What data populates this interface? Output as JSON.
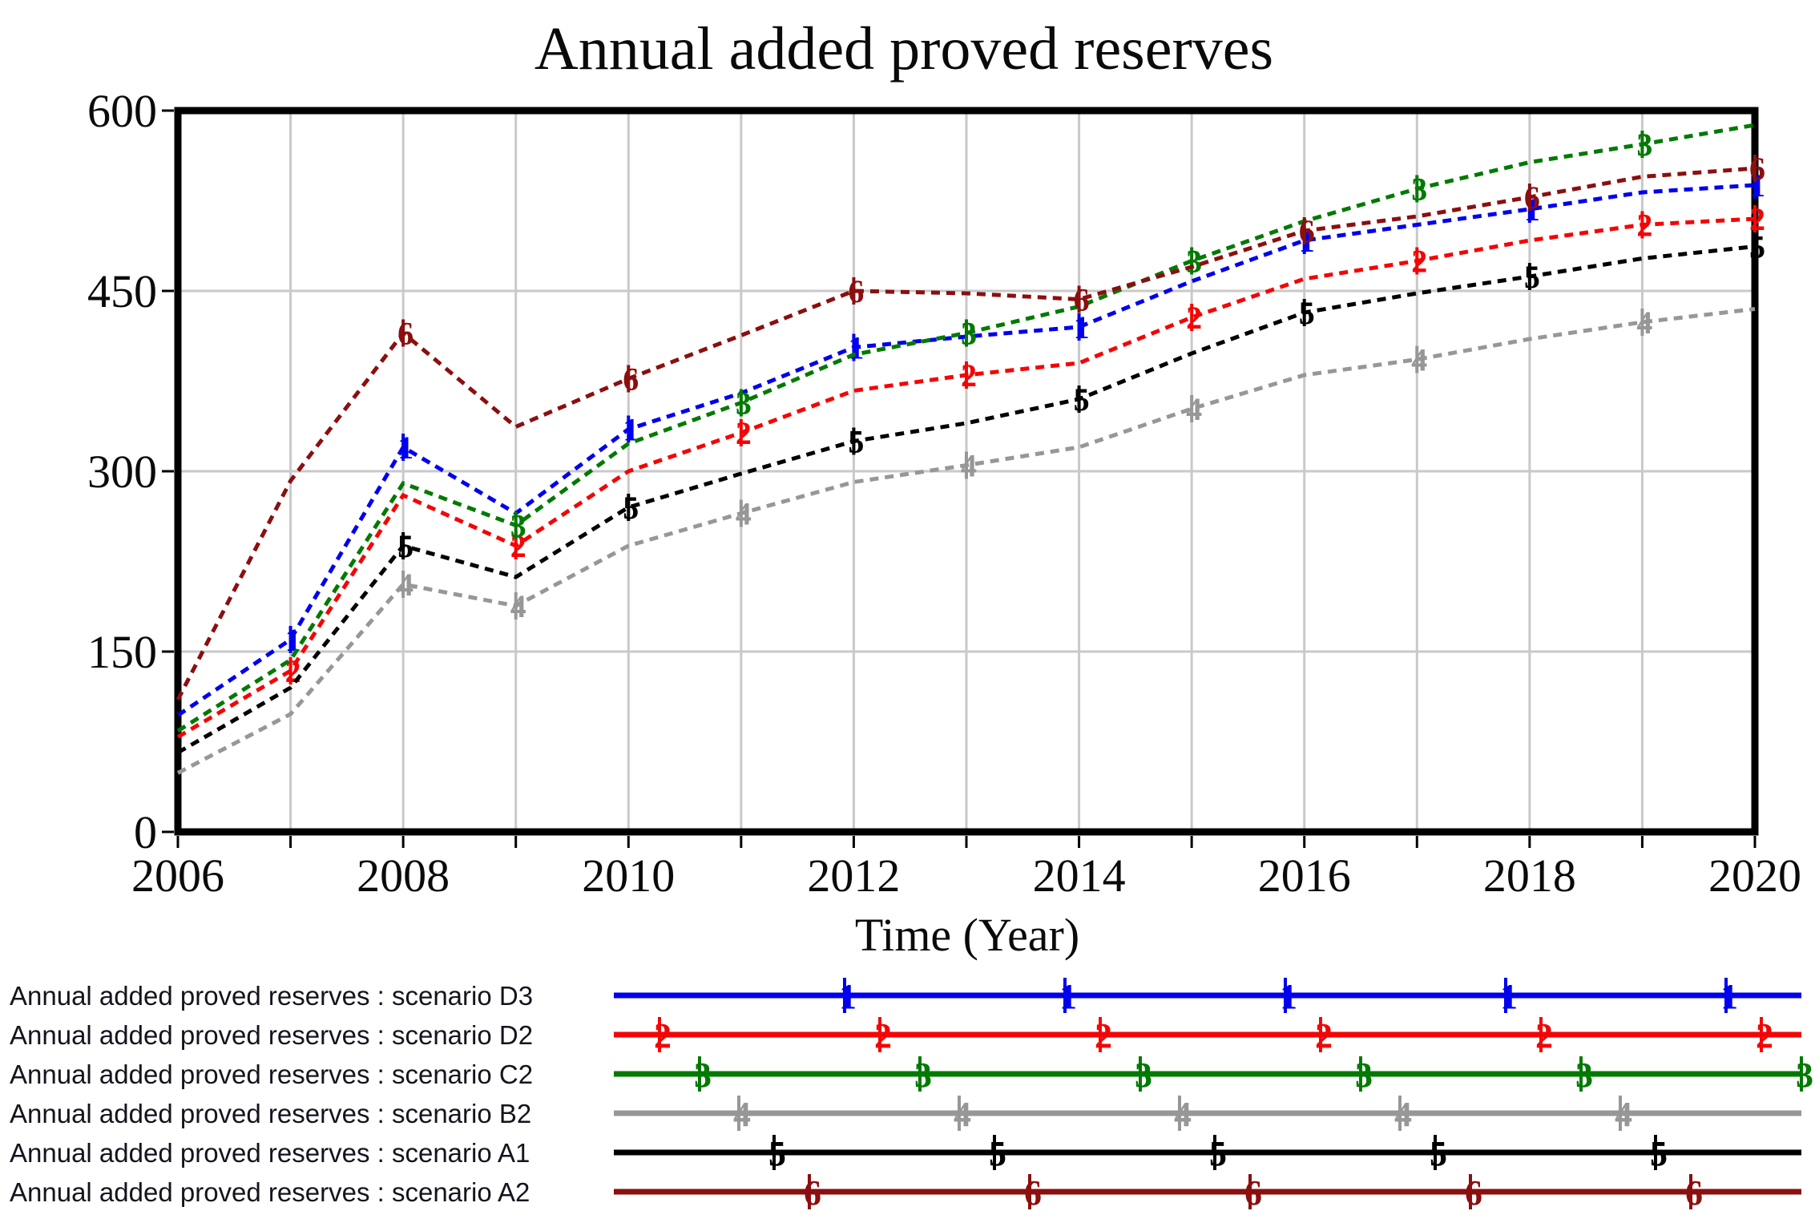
{
  "title": "Annual added proved reserves",
  "x_axis": {
    "label": "Time (Year)"
  },
  "colors": {
    "grid": "#c9c9c9",
    "border": "#000000",
    "text": "#0a0a0a",
    "background": "#ffffff",
    "scenario_D3": "#0000ee",
    "scenario_D2": "#f40505",
    "scenario_C2": "#007a00",
    "scenario_B2": "#979797",
    "scenario_A1": "#000000",
    "scenario_A2": "#8b0f0f"
  },
  "chart_data": {
    "type": "line",
    "title": "Annual added proved reserves",
    "xlabel": "Time (Year)",
    "ylabel": "",
    "xlim": [
      2006,
      2020
    ],
    "ylim": [
      0,
      600
    ],
    "x_ticks": [
      2006,
      2008,
      2010,
      2012,
      2014,
      2016,
      2018,
      2020
    ],
    "y_ticks": [
      0,
      150,
      300,
      450,
      600
    ],
    "grid": true,
    "x": [
      2006,
      2007,
      2008,
      2009,
      2010,
      2011,
      2012,
      2013,
      2014,
      2015,
      2016,
      2017,
      2018,
      2019,
      2020
    ],
    "series": [
      {
        "id": "D3",
        "name": "Annual added proved reserves : scenario D3",
        "marker_digit": "1",
        "color": "#0000ee",
        "values": [
          97,
          160,
          320,
          265,
          335,
          365,
          403,
          412,
          420,
          458,
          492,
          505,
          518,
          532,
          538
        ],
        "marker_years": [
          2007,
          2008,
          2010,
          2012,
          2014,
          2016,
          2018,
          2020
        ]
      },
      {
        "id": "D2",
        "name": "Annual added proved reserves : scenario D2",
        "marker_digit": "2",
        "color": "#f40505",
        "values": [
          79,
          134,
          280,
          238,
          300,
          332,
          367,
          380,
          390,
          428,
          460,
          475,
          492,
          505,
          510
        ],
        "marker_years": [
          2007,
          2009,
          2011,
          2013,
          2015,
          2017,
          2019,
          2020
        ]
      },
      {
        "id": "C2",
        "name": "Annual added proved reserves : scenario C2",
        "marker_digit": "3",
        "color": "#007a00",
        "values": [
          84,
          143,
          290,
          255,
          323,
          357,
          397,
          415,
          437,
          475,
          508,
          535,
          557,
          572,
          588
        ],
        "marker_years": [
          2009,
          2011,
          2013,
          2015,
          2017,
          2019
        ]
      },
      {
        "id": "B2",
        "name": "Annual added proved reserves : scenario B2",
        "marker_digit": "4",
        "color": "#979797",
        "values": [
          49,
          98,
          206,
          188,
          238,
          265,
          291,
          305,
          320,
          352,
          380,
          393,
          410,
          424,
          435
        ],
        "marker_years": [
          2008,
          2009,
          2011,
          2013,
          2015,
          2017,
          2019
        ]
      },
      {
        "id": "A1",
        "name": "Annual added proved reserves : scenario A1",
        "marker_digit": "5",
        "color": "#000000",
        "values": [
          66,
          120,
          238,
          212,
          270,
          298,
          325,
          340,
          360,
          398,
          432,
          448,
          462,
          477,
          487
        ],
        "marker_years": [
          2008,
          2010,
          2012,
          2014,
          2016,
          2018,
          2020
        ]
      },
      {
        "id": "A2",
        "name": "Annual added proved reserves : scenario A2",
        "marker_digit": "6",
        "color": "#8b0f0f",
        "values": [
          110,
          292,
          415,
          337,
          377,
          413,
          450,
          448,
          443,
          470,
          500,
          512,
          528,
          545,
          552
        ],
        "marker_years": [
          2008,
          2010,
          2012,
          2014,
          2016,
          2018,
          2020
        ]
      }
    ]
  },
  "legend": {
    "marker_spacing": 275,
    "line_start": 766,
    "line_end": 2248,
    "rows": [
      {
        "label": "Annual added proved reserves : scenario D3",
        "marker_digit": "1",
        "color": "#0000ee",
        "marker_start": 1054
      },
      {
        "label": "Annual added proved reserves : scenario D2",
        "marker_digit": "2",
        "color": "#f40505",
        "marker_start": 823
      },
      {
        "label": "Annual added proved reserves : scenario C2",
        "marker_digit": "3",
        "color": "#007a00",
        "marker_start": 873
      },
      {
        "label": "Annual added proved reserves : scenario B2",
        "marker_digit": "4",
        "color": "#979797",
        "marker_start": 922
      },
      {
        "label": "Annual added proved reserves : scenario A1",
        "marker_digit": "5",
        "color": "#000000",
        "marker_start": 966
      },
      {
        "label": "Annual added proved reserves : scenario A2",
        "marker_digit": "6",
        "color": "#8b0f0f",
        "marker_start": 1010
      }
    ]
  }
}
